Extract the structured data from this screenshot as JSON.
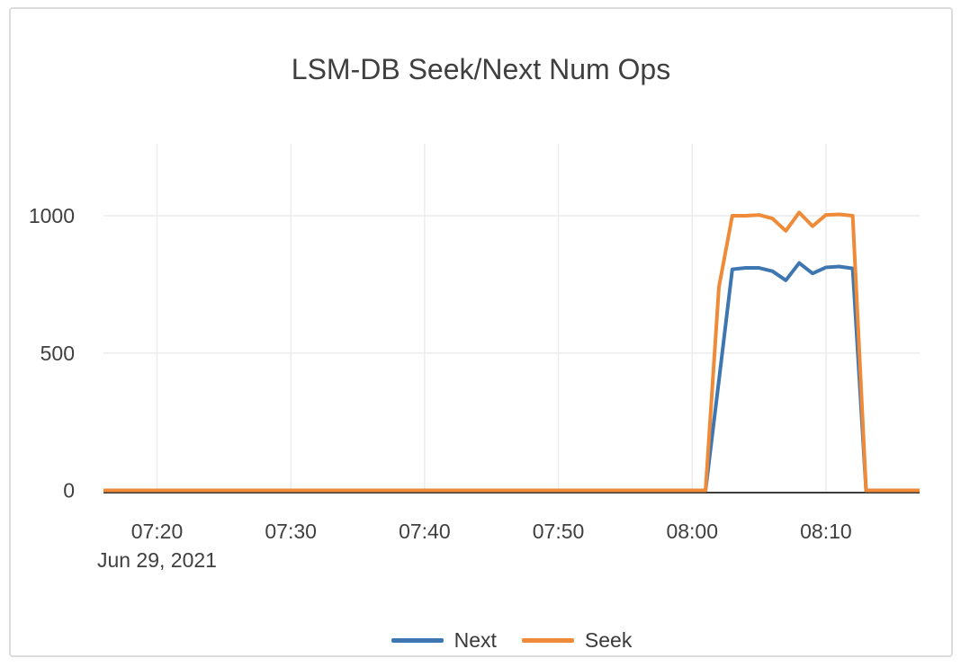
{
  "window": {
    "background": "#ffffff",
    "card_border_color": "#dcdcdc"
  },
  "chart_data": {
    "type": "line",
    "title": "LSM-DB Seek/Next Num Ops",
    "xlabel": "",
    "ylabel": "",
    "x_axis": {
      "tick_labels": [
        "07:20",
        "07:30",
        "07:40",
        "07:50",
        "08:00",
        "08:10"
      ],
      "date_label": "Jun 29, 2021",
      "domain": [
        "07:16",
        "08:17"
      ]
    },
    "y_axis": {
      "tick_labels": [
        "0",
        "500",
        "1000"
      ],
      "tick_values": [
        0,
        500,
        1000
      ],
      "range": [
        0,
        1265
      ],
      "grid": true
    },
    "legend": {
      "position": "bottom-center"
    },
    "colors": {
      "grid": "#ececec",
      "axis_line": "#3c3c3c",
      "text": "#3f3f3f"
    },
    "x": [
      "07:16",
      "07:17",
      "07:18",
      "07:19",
      "07:20",
      "07:21",
      "07:22",
      "07:23",
      "07:24",
      "07:25",
      "07:26",
      "07:27",
      "07:28",
      "07:29",
      "07:30",
      "07:31",
      "07:32",
      "07:33",
      "07:34",
      "07:35",
      "07:36",
      "07:37",
      "07:38",
      "07:39",
      "07:40",
      "07:41",
      "07:42",
      "07:43",
      "07:44",
      "07:45",
      "07:46",
      "07:47",
      "07:48",
      "07:49",
      "07:50",
      "07:51",
      "07:52",
      "07:53",
      "07:54",
      "07:55",
      "07:56",
      "07:57",
      "07:58",
      "07:59",
      "08:00",
      "08:01",
      "08:02",
      "08:03",
      "08:04",
      "08:05",
      "08:06",
      "08:07",
      "08:08",
      "08:09",
      "08:10",
      "08:11",
      "08:12",
      "08:13",
      "08:14",
      "08:15",
      "08:16",
      "08:17"
    ],
    "series": [
      {
        "name": "Next",
        "color": "#3d76b0",
        "values": [
          0,
          0,
          0,
          0,
          0,
          0,
          0,
          0,
          0,
          0,
          0,
          0,
          0,
          0,
          0,
          0,
          0,
          0,
          0,
          0,
          0,
          0,
          0,
          0,
          0,
          0,
          0,
          0,
          0,
          0,
          0,
          0,
          0,
          0,
          0,
          0,
          0,
          0,
          0,
          0,
          0,
          0,
          0,
          0,
          0,
          0,
          400,
          805,
          810,
          810,
          798,
          765,
          828,
          790,
          812,
          815,
          808,
          0,
          0,
          0,
          0,
          0
        ]
      },
      {
        "name": "Seek",
        "color": "#ee8a38",
        "values": [
          0,
          0,
          0,
          0,
          0,
          0,
          0,
          0,
          0,
          0,
          0,
          0,
          0,
          0,
          0,
          0,
          0,
          0,
          0,
          0,
          0,
          0,
          0,
          0,
          0,
          0,
          0,
          0,
          0,
          0,
          0,
          0,
          0,
          0,
          0,
          0,
          0,
          0,
          0,
          0,
          0,
          0,
          0,
          0,
          0,
          0,
          740,
          1000,
          1000,
          1003,
          990,
          945,
          1012,
          962,
          1003,
          1005,
          1000,
          0,
          0,
          0,
          0,
          0
        ]
      }
    ]
  }
}
